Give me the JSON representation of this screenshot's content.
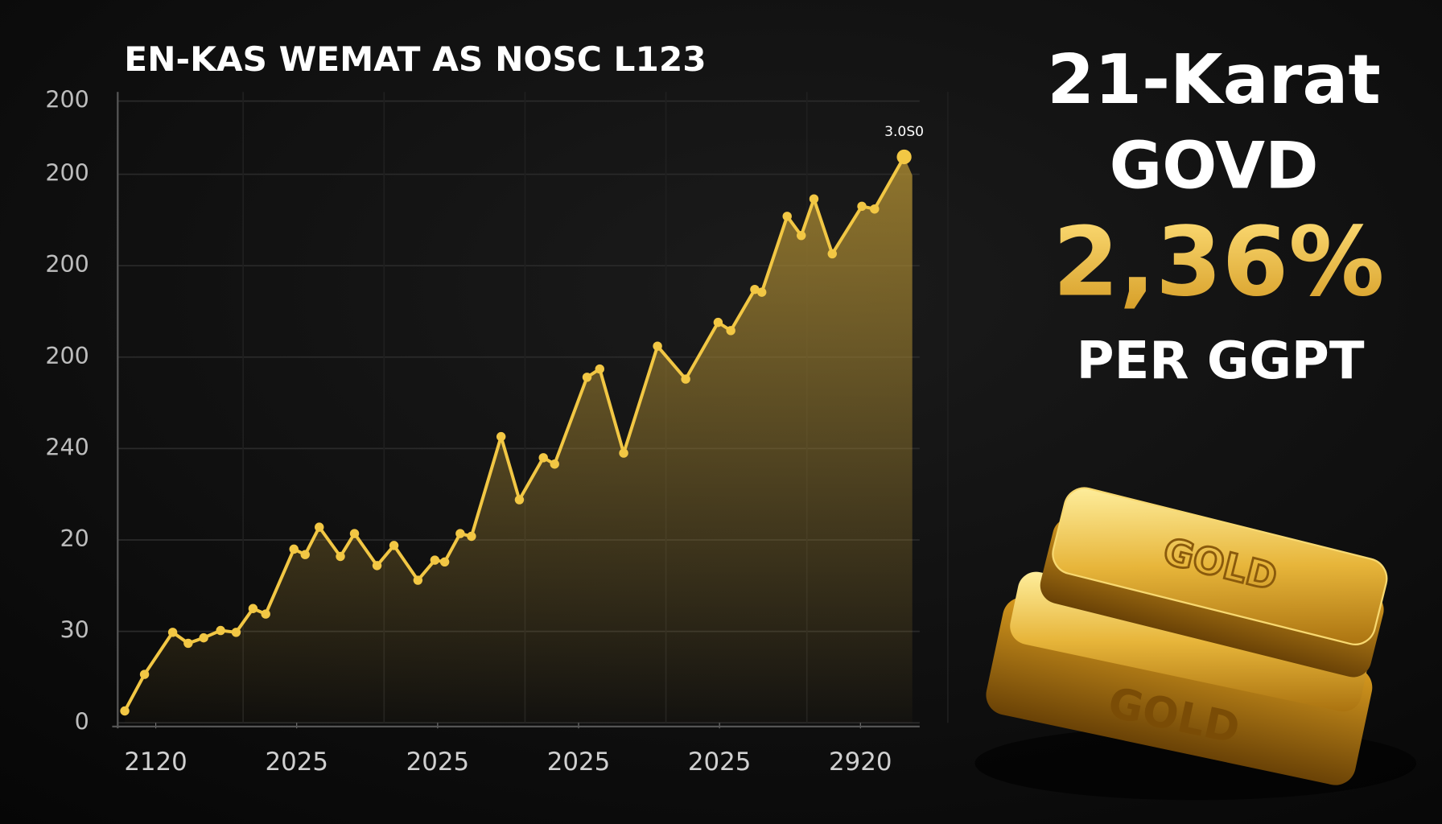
{
  "chart_data": {
    "type": "line",
    "title": "EN-KAS WEMAT AS NOSC L123",
    "annotation": "3.0S0",
    "color": "#f2c744",
    "grid": true,
    "x": [
      -0.22,
      -0.08,
      0.12,
      0.23,
      0.34,
      0.46,
      0.57,
      0.69,
      0.78,
      0.98,
      1.06,
      1.16,
      1.31,
      1.41,
      1.57,
      1.69,
      1.86,
      1.98,
      2.05,
      2.16,
      2.24,
      2.45,
      2.58,
      2.75,
      2.83,
      3.06,
      3.15,
      3.32,
      3.56,
      3.76,
      3.99,
      4.08,
      4.25,
      4.3,
      4.48,
      4.58,
      4.67,
      4.8,
      5.01,
      5.1,
      5.31
    ],
    "values": [
      13,
      53,
      99,
      87,
      93,
      101,
      99,
      125,
      119,
      190,
      184,
      214,
      182,
      207,
      172,
      194,
      156,
      178,
      176,
      207,
      204,
      313,
      244,
      290,
      283,
      378,
      387,
      295,
      412,
      376,
      438,
      429,
      474,
      471,
      554,
      533,
      573,
      513,
      565,
      562,
      619
    ],
    "xlim": [
      -0.27,
      5.42
    ],
    "xticks": [
      {
        "value": 0,
        "label": "2120"
      },
      {
        "value": 1,
        "label": "2025"
      },
      {
        "value": 2,
        "label": "2025"
      },
      {
        "value": 3,
        "label": "2025"
      },
      {
        "value": 4,
        "label": "2025"
      },
      {
        "value": 5,
        "label": "2920"
      }
    ],
    "ylim": [
      0,
      690
    ],
    "yticks": [
      0,
      {
        "value": 100,
        "label": "30"
      },
      {
        "value": 200,
        "label": "20"
      },
      {
        "value": 300,
        "label": "240"
      },
      {
        "value": 400,
        "label": "200"
      },
      {
        "value": 500,
        "label": "200"
      },
      {
        "value": 600,
        "label": "200"
      },
      {
        "value": 680,
        "label": "200"
      }
    ]
  },
  "panel": {
    "line1": "21-Karat",
    "line2": "GOVD",
    "value": "2,36%",
    "unit": "PER GGPT",
    "bar_labels": [
      "GOLD",
      "GOLD"
    ]
  }
}
